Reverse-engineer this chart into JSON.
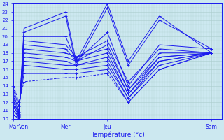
{
  "xlabel": "Température (°c)",
  "bg_color": "#cce8f0",
  "grid_color": "#aacccc",
  "line_color": "#1a1aee",
  "ylim": [
    10,
    24
  ],
  "yticks": [
    10,
    11,
    12,
    13,
    14,
    15,
    16,
    17,
    18,
    19,
    20,
    21,
    22,
    23,
    24
  ],
  "xtick_labels": [
    "Mar",
    "Ven",
    "Mer",
    "Jeu",
    "Sam"
  ],
  "xtick_positions": [
    0,
    12,
    60,
    108,
    228
  ],
  "xlim": [
    0,
    240
  ],
  "series": [
    {
      "x": [
        0,
        6,
        12,
        60,
        72,
        108,
        132,
        168,
        228
      ],
      "y": [
        10.5,
        10.0,
        21.0,
        23.0,
        17.0,
        24.0,
        17.0,
        22.5,
        18.0
      ]
    },
    {
      "x": [
        0,
        6,
        12,
        60,
        72,
        108,
        132,
        168,
        228
      ],
      "y": [
        10.5,
        10.0,
        20.5,
        22.5,
        16.5,
        23.5,
        16.5,
        22.0,
        18.5
      ]
    },
    {
      "x": [
        0,
        6,
        12,
        60,
        72,
        108,
        132,
        168,
        228
      ],
      "y": [
        11.0,
        10.2,
        20.0,
        20.0,
        17.0,
        20.5,
        14.0,
        19.0,
        18.5
      ]
    },
    {
      "x": [
        0,
        6,
        12,
        60,
        72,
        108,
        132,
        168,
        228
      ],
      "y": [
        11.0,
        10.3,
        19.5,
        19.0,
        17.5,
        19.5,
        14.5,
        18.5,
        18.0
      ]
    },
    {
      "x": [
        0,
        6,
        12,
        60,
        72,
        108,
        132,
        168,
        228
      ],
      "y": [
        11.5,
        10.4,
        19.0,
        18.5,
        17.0,
        19.0,
        13.5,
        18.0,
        18.0
      ]
    },
    {
      "x": [
        0,
        6,
        12,
        60,
        72,
        108,
        132,
        168,
        228
      ],
      "y": [
        11.5,
        10.5,
        18.5,
        18.0,
        17.5,
        18.5,
        13.5,
        17.5,
        18.0
      ]
    },
    {
      "x": [
        0,
        6,
        12,
        60,
        72,
        108,
        132,
        168,
        228
      ],
      "y": [
        12.0,
        10.6,
        18.0,
        17.5,
        17.0,
        18.0,
        13.0,
        17.5,
        18.0
      ]
    },
    {
      "x": [
        0,
        6,
        12,
        60,
        72,
        108,
        132,
        168,
        228
      ],
      "y": [
        12.0,
        10.7,
        17.5,
        17.0,
        16.5,
        17.5,
        13.0,
        17.0,
        18.0
      ]
    },
    {
      "x": [
        0,
        6,
        12,
        60,
        72,
        108,
        132,
        168,
        228
      ],
      "y": [
        12.5,
        10.8,
        17.0,
        16.5,
        16.5,
        17.0,
        12.5,
        17.0,
        18.0
      ]
    },
    {
      "x": [
        0,
        6,
        12,
        60,
        72,
        108,
        132,
        168,
        228
      ],
      "y": [
        13.0,
        11.0,
        16.5,
        16.0,
        16.0,
        16.5,
        12.5,
        16.5,
        18.0
      ]
    },
    {
      "x": [
        0,
        6,
        12,
        60,
        72,
        108,
        132,
        168,
        228
      ],
      "y": [
        13.5,
        11.5,
        15.5,
        15.5,
        15.5,
        16.0,
        12.0,
        16.0,
        18.0
      ]
    },
    {
      "x": [
        0,
        6,
        12,
        60,
        72,
        108,
        132,
        168,
        228
      ],
      "y": [
        14.0,
        12.0,
        14.5,
        15.0,
        15.0,
        15.5,
        12.0,
        16.0,
        18.0
      ],
      "dashed": true
    }
  ]
}
